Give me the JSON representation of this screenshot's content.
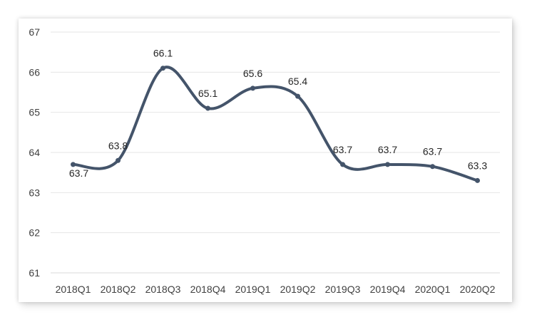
{
  "chart_data": {
    "type": "line",
    "title": "",
    "xlabel": "",
    "ylabel": "",
    "categories": [
      "2018Q1",
      "2018Q2",
      "2018Q3",
      "2018Q4",
      "2019Q1",
      "2019Q2",
      "2019Q3",
      "2019Q4",
      "2020Q1",
      "2020Q2"
    ],
    "series": [
      {
        "values": [
          63.7,
          63.8,
          66.1,
          65.1,
          65.6,
          65.4,
          63.7,
          63.7,
          63.65,
          63.3
        ],
        "data_labels": [
          "63.7",
          "63.8",
          "66.1",
          "65.1",
          "65.6",
          "65.4",
          "63.7",
          "63.7",
          "63.7",
          "63.3"
        ],
        "color": "#44546a",
        "smooth": true
      }
    ],
    "ylim": [
      61,
      67
    ],
    "yticks": [
      "61",
      "62",
      "63",
      "64",
      "65",
      "66",
      "67"
    ],
    "grid": true
  }
}
